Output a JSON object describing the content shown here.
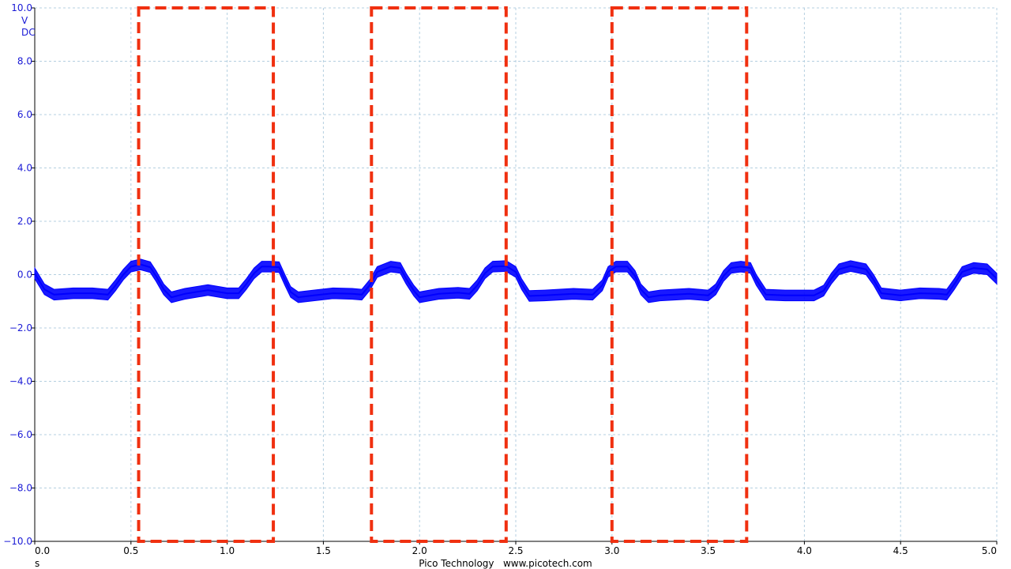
{
  "chart_data": {
    "type": "line",
    "title": "",
    "xlabel": "s",
    "ylabel": "V",
    "y_units": [
      "V",
      "DC"
    ],
    "xlim": [
      0.0,
      5.0
    ],
    "ylim": [
      -10.0,
      10.0
    ],
    "grid": true,
    "x_ticks": [
      "0.0",
      "0.5",
      "1.0",
      "1.5",
      "2.0",
      "2.5",
      "3.0",
      "3.5",
      "4.0",
      "4.5",
      "5.0"
    ],
    "y_ticks": [
      "10.0",
      "8.0",
      "6.0",
      "4.0",
      "2.0",
      "0.0",
      "-2.0",
      "-4.0",
      "-6.0",
      "-8.0",
      "-10.0"
    ],
    "series": [
      {
        "color": "#0000ff",
        "noise_band_v": 0.4,
        "x": [
          0.0,
          0.05,
          0.1,
          0.2,
          0.3,
          0.38,
          0.42,
          0.46,
          0.5,
          0.55,
          0.6,
          0.63,
          0.67,
          0.71,
          0.78,
          0.9,
          1.0,
          1.06,
          1.1,
          1.14,
          1.18,
          1.22,
          1.27,
          1.3,
          1.33,
          1.37,
          1.45,
          1.55,
          1.65,
          1.7,
          1.74,
          1.78,
          1.85,
          1.9,
          1.93,
          1.97,
          2.0,
          2.1,
          2.2,
          2.26,
          2.3,
          2.34,
          2.38,
          2.45,
          2.5,
          2.53,
          2.57,
          2.65,
          2.8,
          2.9,
          2.95,
          2.98,
          3.02,
          3.08,
          3.12,
          3.15,
          3.19,
          3.25,
          3.4,
          3.5,
          3.54,
          3.58,
          3.62,
          3.67,
          3.72,
          3.75,
          3.8,
          3.9,
          4.05,
          4.1,
          4.14,
          4.18,
          4.24,
          4.32,
          4.36,
          4.4,
          4.5,
          4.6,
          4.7,
          4.74,
          4.78,
          4.82,
          4.88,
          4.95,
          5.0
        ],
        "y": [
          0.05,
          -0.55,
          -0.75,
          -0.7,
          -0.7,
          -0.75,
          -0.4,
          0.0,
          0.3,
          0.38,
          0.28,
          -0.05,
          -0.55,
          -0.85,
          -0.72,
          -0.58,
          -0.7,
          -0.7,
          -0.35,
          0.05,
          0.3,
          0.3,
          0.28,
          -0.2,
          -0.65,
          -0.85,
          -0.78,
          -0.7,
          -0.72,
          -0.75,
          -0.4,
          0.1,
          0.3,
          0.25,
          -0.15,
          -0.6,
          -0.85,
          -0.72,
          -0.68,
          -0.72,
          -0.4,
          0.05,
          0.3,
          0.32,
          0.1,
          -0.35,
          -0.8,
          -0.78,
          -0.72,
          -0.75,
          -0.4,
          0.1,
          0.3,
          0.3,
          -0.05,
          -0.55,
          -0.85,
          -0.78,
          -0.72,
          -0.78,
          -0.55,
          -0.05,
          0.25,
          0.3,
          0.25,
          -0.2,
          -0.75,
          -0.78,
          -0.78,
          -0.6,
          -0.15,
          0.2,
          0.32,
          0.2,
          -0.2,
          -0.7,
          -0.78,
          -0.7,
          -0.72,
          -0.75,
          -0.35,
          0.1,
          0.25,
          0.2,
          -0.15
        ]
      }
    ],
    "annotations": [
      {
        "type": "dashed-rectangle",
        "color": "#f03010",
        "x0": 0.54,
        "x1": 1.24,
        "y0": -10.0,
        "y1": 10.0
      },
      {
        "type": "dashed-rectangle",
        "color": "#f03010",
        "x0": 1.75,
        "x1": 2.45,
        "y0": -10.0,
        "y1": 10.0
      },
      {
        "type": "dashed-rectangle",
        "color": "#f03010",
        "x0": 3.0,
        "x1": 3.7,
        "y0": -10.0,
        "y1": 10.0
      }
    ]
  },
  "footer": {
    "credit": "Pico Technology   www.picotech.com"
  }
}
